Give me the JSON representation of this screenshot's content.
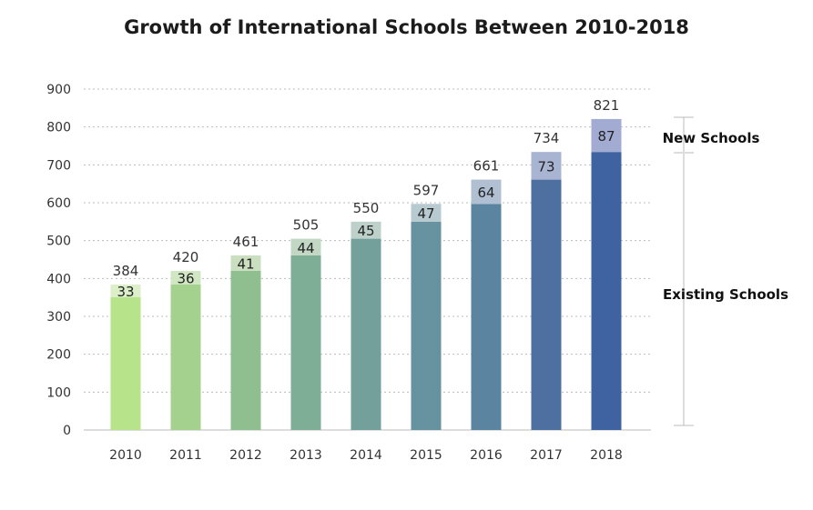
{
  "chart_data": {
    "type": "bar",
    "title": "Growth of International Schools Between 2010-2018",
    "categories": [
      "2010",
      "2011",
      "2012",
      "2013",
      "2014",
      "2015",
      "2016",
      "2017",
      "2018"
    ],
    "totals": [
      384,
      420,
      461,
      505,
      550,
      597,
      661,
      734,
      821
    ],
    "series": [
      {
        "name": "Existing Schools",
        "values": [
          351,
          384,
          420,
          461,
          505,
          550,
          597,
          661,
          734
        ]
      },
      {
        "name": "New Schools",
        "values": [
          33,
          36,
          41,
          44,
          45,
          47,
          64,
          73,
          87
        ]
      }
    ],
    "ylim": [
      0,
      900
    ],
    "yticks": [
      "0",
      "100",
      "200",
      "300",
      "400",
      "500",
      "600",
      "700",
      "800",
      "900"
    ],
    "grid": "dashed horizontal",
    "stacked": true,
    "annotations": {
      "new": "New Schools",
      "existing": "Existing Schools"
    },
    "colors": {
      "existing": [
        "#b7e38a",
        "#a4d28e",
        "#8fbf8f",
        "#7fae97",
        "#74a09c",
        "#67929f",
        "#5a84a0",
        "#4d70a1",
        "#3f63a0"
      ],
      "new": [
        "#dcefc9",
        "#d1e7c3",
        "#c9dfbf",
        "#c2d7c4",
        "#bdd1ca",
        "#b7cad0",
        "#b0c0d2",
        "#a9b4d3",
        "#a2acd2"
      ],
      "axis": "#bbbbbb",
      "grid": "#bbbbbb",
      "bracket": "#bbbbbb"
    }
  }
}
